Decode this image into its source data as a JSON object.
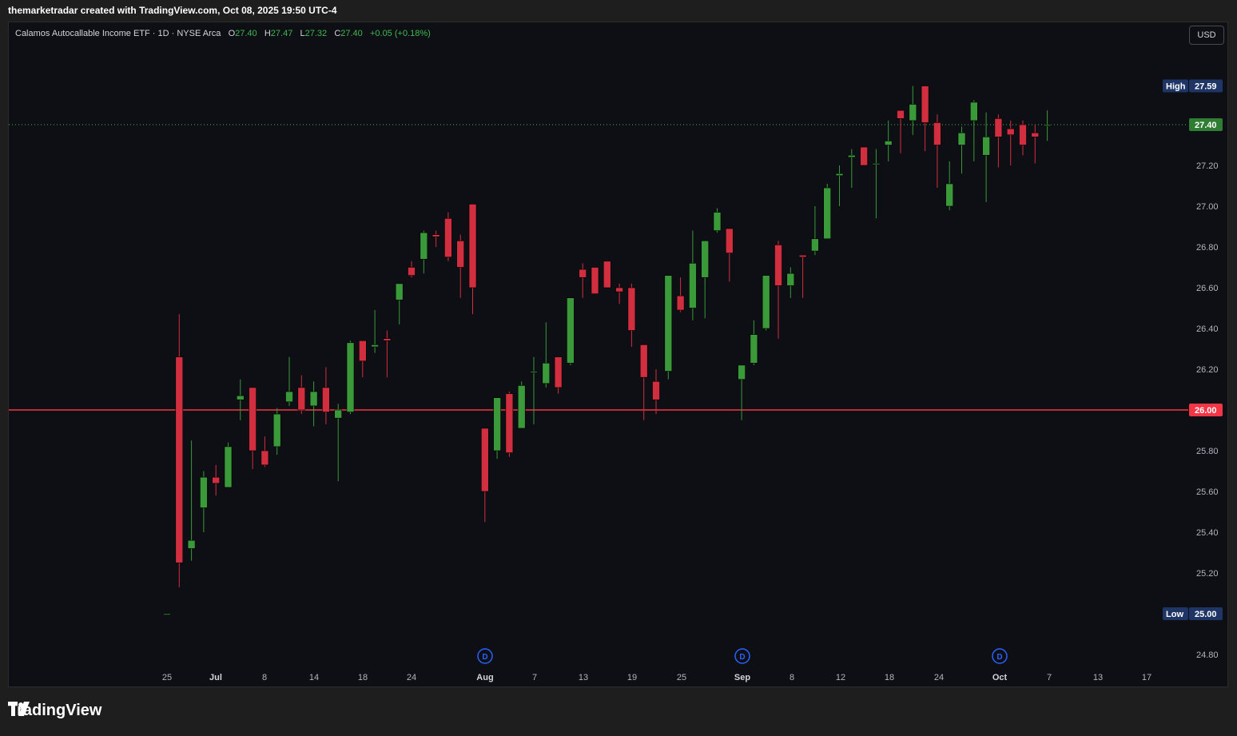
{
  "header": {
    "caption": "themarketradar created with TradingView.com, Oct 08, 2025 19:50 UTC-4"
  },
  "legend": {
    "symbol": "Calamos Autocallable Income ETF · 1D · NYSE Arca",
    "o_label": "O",
    "o_value": "27.40",
    "h_label": "H",
    "h_value": "27.47",
    "l_label": "L",
    "l_value": "27.32",
    "c_label": "C",
    "c_value": "27.40",
    "change": "+0.05 (+0.18%)"
  },
  "currency_button": "USD",
  "footer": {
    "brand": "TradingView"
  },
  "colors": {
    "up": "#3a9a3a",
    "down": "#d12e3f",
    "background": "#0e0f14",
    "price_line": "#3fb950",
    "level_line": "#f23645",
    "tag_high_low": "#1e3566"
  },
  "chart_data": {
    "type": "candlestick",
    "price_ticks": [
      "27.20",
      "27.00",
      "26.80",
      "26.60",
      "26.40",
      "26.20",
      "25.80",
      "25.60",
      "25.40",
      "25.20",
      "24.80"
    ],
    "time_ticks": [
      {
        "label": "25",
        "bold": false
      },
      {
        "label": "Jul",
        "bold": true
      },
      {
        "label": "8",
        "bold": false
      },
      {
        "label": "14",
        "bold": false
      },
      {
        "label": "18",
        "bold": false
      },
      {
        "label": "24",
        "bold": false
      },
      {
        "label": "Aug",
        "bold": true
      },
      {
        "label": "7",
        "bold": false
      },
      {
        "label": "13",
        "bold": false
      },
      {
        "label": "19",
        "bold": false
      },
      {
        "label": "25",
        "bold": false
      },
      {
        "label": "Sep",
        "bold": true
      },
      {
        "label": "8",
        "bold": false
      },
      {
        "label": "12",
        "bold": false
      },
      {
        "label": "18",
        "bold": false
      },
      {
        "label": "24",
        "bold": false
      },
      {
        "label": "Oct",
        "bold": true
      },
      {
        "label": "7",
        "bold": false
      },
      {
        "label": "13",
        "bold": false
      },
      {
        "label": "17",
        "bold": false
      }
    ],
    "high": {
      "label": "High",
      "value": "27.59"
    },
    "low": {
      "label": "Low",
      "value": "25.00"
    },
    "last_price": "27.40",
    "horizontal_level": "26.00",
    "dividend_marker": "D",
    "candles": [
      [
        25.0,
        25.0,
        25.0,
        25.0
      ],
      [
        26.26,
        26.47,
        25.13,
        25.25
      ],
      [
        25.32,
        25.85,
        25.26,
        25.36
      ],
      [
        25.52,
        25.7,
        25.4,
        25.67
      ],
      [
        25.67,
        25.73,
        25.58,
        25.64
      ],
      [
        25.62,
        25.84,
        25.62,
        25.82
      ],
      [
        26.05,
        26.15,
        25.95,
        26.07
      ],
      [
        26.11,
        26.11,
        25.71,
        25.8
      ],
      [
        25.8,
        25.87,
        25.72,
        25.73
      ],
      [
        25.82,
        26.01,
        25.78,
        25.98
      ],
      [
        26.04,
        26.26,
        26.02,
        26.09
      ],
      [
        26.11,
        26.17,
        25.98,
        26.0
      ],
      [
        26.02,
        26.14,
        25.92,
        26.09
      ],
      [
        26.11,
        26.21,
        25.93,
        25.99
      ],
      [
        25.96,
        26.03,
        25.65,
        26.0
      ],
      [
        25.99,
        26.34,
        25.98,
        26.33
      ],
      [
        26.34,
        26.34,
        26.16,
        26.24
      ],
      [
        26.31,
        26.49,
        26.28,
        26.32
      ],
      [
        26.35,
        26.39,
        26.16,
        26.34
      ],
      [
        26.54,
        26.62,
        26.42,
        26.62
      ],
      [
        26.7,
        26.73,
        26.65,
        26.66
      ],
      [
        26.74,
        26.88,
        26.67,
        26.87
      ],
      [
        26.86,
        26.88,
        26.8,
        26.85
      ],
      [
        26.94,
        26.97,
        26.73,
        26.75
      ],
      [
        26.83,
        26.86,
        26.55,
        26.7
      ],
      [
        27.01,
        27.01,
        26.47,
        26.6
      ],
      [
        25.91,
        25.91,
        25.45,
        25.6
      ],
      [
        25.8,
        26.05,
        25.76,
        26.06
      ],
      [
        26.08,
        26.09,
        25.77,
        25.79
      ],
      [
        25.91,
        26.14,
        25.91,
        26.12
      ],
      [
        26.19,
        26.26,
        25.93,
        26.19
      ],
      [
        26.13,
        26.43,
        26.11,
        26.23
      ],
      [
        26.26,
        26.26,
        26.08,
        26.11
      ],
      [
        26.23,
        26.55,
        26.22,
        26.55
      ],
      [
        26.69,
        26.72,
        26.55,
        26.65
      ],
      [
        26.7,
        26.7,
        26.57,
        26.57
      ],
      [
        26.73,
        26.73,
        26.6,
        26.6
      ],
      [
        26.6,
        26.62,
        26.52,
        26.58
      ],
      [
        26.6,
        26.62,
        26.31,
        26.39
      ],
      [
        26.32,
        26.32,
        25.95,
        26.16
      ],
      [
        26.14,
        26.2,
        25.98,
        26.05
      ],
      [
        26.19,
        26.66,
        26.15,
        26.66
      ],
      [
        26.56,
        26.65,
        26.48,
        26.49
      ],
      [
        26.5,
        26.88,
        26.44,
        26.72
      ],
      [
        26.65,
        26.83,
        26.45,
        26.83
      ],
      [
        26.88,
        26.99,
        26.87,
        26.97
      ],
      [
        26.89,
        26.89,
        26.63,
        26.77
      ],
      [
        26.15,
        26.22,
        25.95,
        26.22
      ],
      [
        26.23,
        26.44,
        26.22,
        26.37
      ],
      [
        26.4,
        26.66,
        26.39,
        26.66
      ],
      [
        26.81,
        26.83,
        26.35,
        26.61
      ],
      [
        26.61,
        26.7,
        26.55,
        26.67
      ],
      [
        26.76,
        26.76,
        26.55,
        26.75
      ],
      [
        26.78,
        27.0,
        26.76,
        26.84
      ],
      [
        26.84,
        27.11,
        26.84,
        27.09
      ],
      [
        27.15,
        27.2,
        27.0,
        27.16
      ],
      [
        27.24,
        27.28,
        27.09,
        27.25
      ],
      [
        27.29,
        27.29,
        27.2,
        27.2
      ],
      [
        27.21,
        27.28,
        26.94,
        27.21
      ],
      [
        27.3,
        27.42,
        27.22,
        27.32
      ],
      [
        27.47,
        27.47,
        27.26,
        27.43
      ],
      [
        27.42,
        27.59,
        27.35,
        27.5
      ],
      [
        27.59,
        27.59,
        27.27,
        27.41
      ],
      [
        27.41,
        27.45,
        27.09,
        27.3
      ],
      [
        27.0,
        27.22,
        26.98,
        27.11
      ],
      [
        27.3,
        27.39,
        27.16,
        27.36
      ],
      [
        27.42,
        27.52,
        27.22,
        27.51
      ],
      [
        27.25,
        27.46,
        27.02,
        27.34
      ],
      [
        27.43,
        27.45,
        27.19,
        27.34
      ],
      [
        27.38,
        27.42,
        27.2,
        27.35
      ],
      [
        27.4,
        27.42,
        27.25,
        27.3
      ],
      [
        27.36,
        27.4,
        27.21,
        27.34
      ],
      [
        27.4,
        27.47,
        27.32,
        27.4
      ]
    ]
  }
}
